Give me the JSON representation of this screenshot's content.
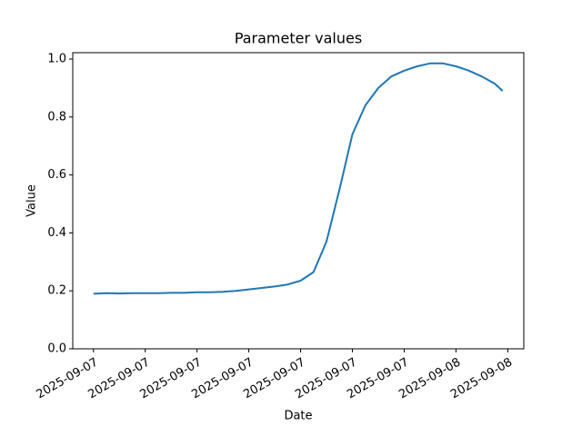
{
  "chart_data": {
    "type": "line",
    "title": "Parameter values",
    "x_label": "Date",
    "y_label": "Value",
    "x": [
      0,
      0.25,
      0.5,
      0.75,
      1,
      1.25,
      1.5,
      1.75,
      2,
      2.25,
      2.5,
      2.75,
      3,
      3.25,
      3.5,
      3.75,
      4,
      4.25,
      4.5,
      4.75,
      5,
      5.25,
      5.5,
      5.75,
      6,
      6.25,
      6.5,
      6.75,
      7,
      7.25,
      7.5,
      7.75,
      7.9
    ],
    "series": [
      {
        "name": "Value",
        "color": "#1f77b4",
        "values": [
          0.19,
          0.192,
          0.191,
          0.192,
          0.192,
          0.192,
          0.193,
          0.193,
          0.195,
          0.195,
          0.197,
          0.2,
          0.205,
          0.21,
          0.215,
          0.222,
          0.235,
          0.265,
          0.37,
          0.55,
          0.74,
          0.84,
          0.9,
          0.94,
          0.96,
          0.975,
          0.985,
          0.985,
          0.975,
          0.96,
          0.94,
          0.915,
          0.89
        ]
      }
    ],
    "xlim": [
      -0.4,
      8.31
    ],
    "xticks": [
      {
        "value": 0,
        "label": "2025-09-07"
      },
      {
        "value": 1,
        "label": "2025-09-07"
      },
      {
        "value": 2,
        "label": "2025-09-07"
      },
      {
        "value": 3,
        "label": "2025-09-07"
      },
      {
        "value": 4,
        "label": "2025-09-07"
      },
      {
        "value": 5,
        "label": "2025-09-07"
      },
      {
        "value": 6,
        "label": "2025-09-07"
      },
      {
        "value": 7,
        "label": "2025-09-08"
      },
      {
        "value": 8,
        "label": "2025-09-08"
      }
    ],
    "ylim": [
      0,
      1.022
    ],
    "yticks": [
      {
        "value": 0,
        "label": "0.0"
      },
      {
        "value": 0.2,
        "label": "0.2"
      },
      {
        "value": 0.4,
        "label": "0.4"
      },
      {
        "value": 0.6,
        "label": "0.6"
      },
      {
        "value": 0.8,
        "label": "0.8"
      },
      {
        "value": 1,
        "label": "1.0"
      }
    ],
    "grid": false
  }
}
